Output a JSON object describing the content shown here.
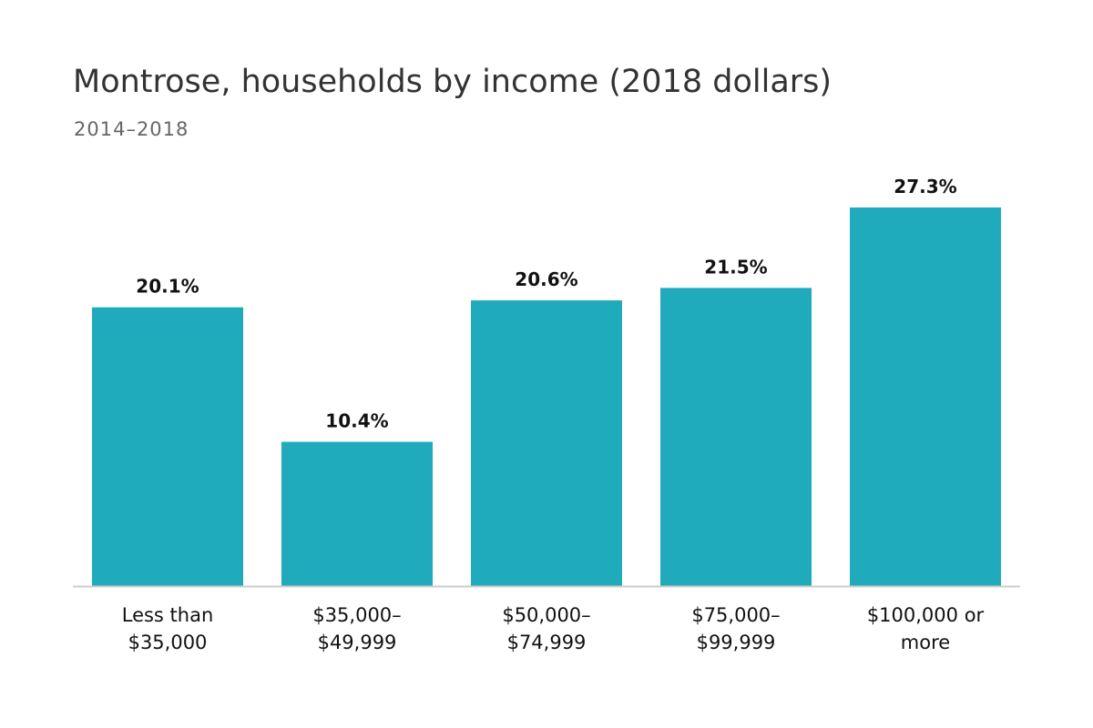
{
  "header": {
    "title": "Montrose, households by income (2018 dollars)",
    "subtitle": "2014–2018"
  },
  "colors": {
    "bar": "#20abbc",
    "baseline": "#cccccc"
  },
  "chart_data": {
    "type": "bar",
    "title": "Montrose, households by income (2018 dollars)",
    "subtitle": "2014–2018",
    "categories": [
      [
        "Less than",
        "$35,000"
      ],
      [
        "$35,000–",
        "$49,999"
      ],
      [
        "$50,000–",
        "$74,999"
      ],
      [
        "$75,000–",
        "$99,999"
      ],
      [
        "$100,000 or",
        "more"
      ]
    ],
    "values": [
      20.1,
      10.4,
      20.6,
      21.5,
      27.3
    ],
    "value_labels": [
      "20.1%",
      "10.4%",
      "20.6%",
      "21.5%",
      "27.3%"
    ],
    "value_suffix": "%",
    "ylim": [
      0,
      27.3
    ],
    "grid": false,
    "legend": "none",
    "xlabel": "",
    "ylabel": ""
  }
}
